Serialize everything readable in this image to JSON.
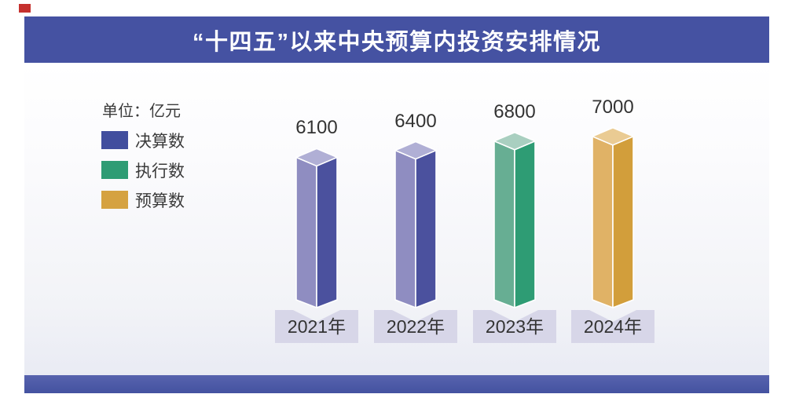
{
  "header": {
    "title": "“十四五”以来中央预算内投资安排情况"
  },
  "unit_label": "单位：亿元",
  "legend": {
    "items": [
      {
        "label": "决算数",
        "color": "#414e9e"
      },
      {
        "label": "执行数",
        "color": "#2e9c74"
      },
      {
        "label": "预算数",
        "color": "#d5a241"
      }
    ]
  },
  "colors": {
    "banner_bg": "#4552a2",
    "footer_bg": "#4c59a7",
    "chip_bg": "#d7d6e8",
    "chart_bg_bottom": "#e9ebf4",
    "corner_mark": "#c5312e",
    "value_text": "#333333"
  },
  "chart_data": {
    "type": "bar",
    "title": "“十四五”以来中央预算内投资安排情况",
    "unit": "亿元",
    "categories": [
      "2021年",
      "2022年",
      "2023年",
      "2024年"
    ],
    "values": [
      6100,
      6400,
      6800,
      7000
    ],
    "value_labels": [
      "6100",
      "6400",
      "6800",
      "7000"
    ],
    "series_of_bar": [
      "决算数",
      "决算数",
      "执行数",
      "预算数"
    ],
    "legend_entries": [
      "决算数",
      "执行数",
      "预算数"
    ],
    "legend_position": "left",
    "grid": false,
    "axes_shown": false,
    "ylim": [
      0,
      7400
    ],
    "bar_style": "3d-column",
    "bar_colors": [
      {
        "top": "#b0afd5",
        "left": "#8f8dc1",
        "right": "#4b519e"
      },
      {
        "top": "#b0afd5",
        "left": "#8f8dc1",
        "right": "#4b519e"
      },
      {
        "top": "#a9cfc0",
        "left": "#67ae93",
        "right": "#2e9c74"
      },
      {
        "top": "#eacb93",
        "left": "#e0b266",
        "right": "#d29e3b"
      }
    ]
  }
}
